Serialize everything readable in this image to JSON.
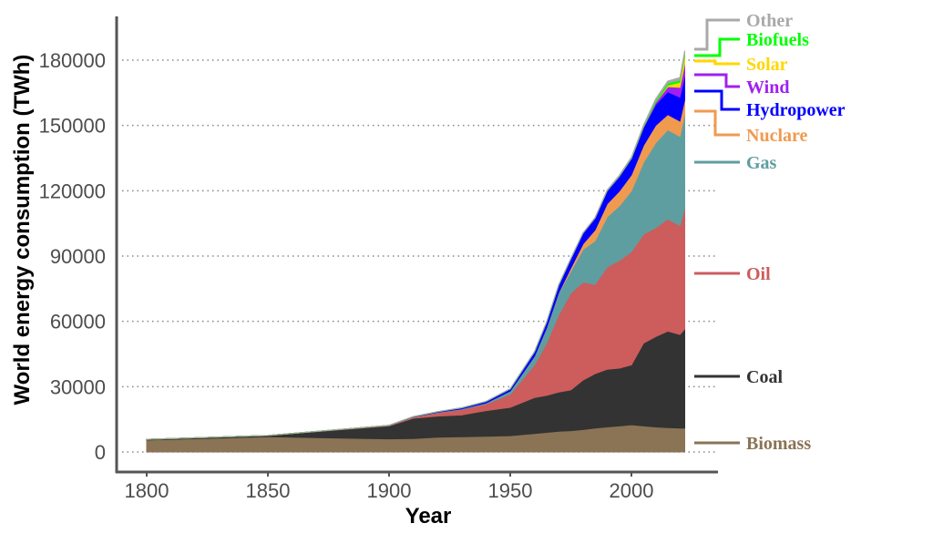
{
  "chart_data": {
    "type": "area",
    "stacked": true,
    "title": "",
    "xlabel": "Year",
    "ylabel": "World energy consumption (TWh)",
    "xlim": [
      1788,
      2035
    ],
    "ylim": [
      -9000,
      200000
    ],
    "xticks": [
      1800,
      1850,
      1900,
      1950,
      2000
    ],
    "yticks": [
      0,
      30000,
      60000,
      90000,
      120000,
      150000,
      180000
    ],
    "grid": "horizontal dotted",
    "legend": "direct labels at right",
    "x": [
      1800,
      1850,
      1900,
      1910,
      1920,
      1930,
      1940,
      1950,
      1960,
      1965,
      1970,
      1975,
      1980,
      1985,
      1990,
      1995,
      2000,
      2005,
      2010,
      2015,
      2020,
      2022
    ],
    "series": [
      {
        "name": "Biomass",
        "color": "#8B7355",
        "values": [
          5500,
          7000,
          6000,
          6200,
          6800,
          7000,
          7200,
          7500,
          8500,
          9000,
          9500,
          9800,
          10300,
          11000,
          11500,
          12000,
          12500,
          12000,
          11500,
          11200,
          11000,
          11000
        ]
      },
      {
        "name": "Coal",
        "color": "#333333",
        "values": [
          300,
          600,
          6000,
          9300,
          9700,
          10000,
          11800,
          13000,
          16500,
          17000,
          18000,
          18700,
          22700,
          25000,
          26500,
          26500,
          27500,
          38000,
          41500,
          44300,
          43000,
          45500
        ]
      },
      {
        "name": "Oil",
        "color": "#CD5C5C",
        "values": [
          0,
          0,
          200,
          500,
          1500,
          2500,
          3000,
          6000,
          15000,
          24000,
          35500,
          44500,
          45000,
          41000,
          47000,
          49500,
          52000,
          50000,
          50000,
          51500,
          50000,
          55500
        ]
      },
      {
        "name": "Gas",
        "color": "#5F9EA0",
        "values": [
          0,
          0,
          0,
          100,
          200,
          300,
          500,
          1500,
          4000,
          7000,
          10000,
          10000,
          15000,
          20000,
          23000,
          25000,
          28000,
          33000,
          39000,
          41000,
          41000,
          43000
        ]
      },
      {
        "name": "Nuclare",
        "color": "#F09A50",
        "values": [
          0,
          0,
          0,
          0,
          0,
          0,
          0,
          0,
          0,
          50,
          200,
          1500,
          2500,
          5000,
          6000,
          6800,
          7300,
          7800,
          8000,
          7000,
          7000,
          6800
        ]
      },
      {
        "name": "Hydropower",
        "color": "#0000FF",
        "values": [
          0,
          0,
          50,
          150,
          300,
          500,
          700,
          1000,
          2000,
          2600,
          3500,
          4300,
          5000,
          5500,
          6000,
          6800,
          7500,
          8200,
          9500,
          10500,
          11000,
          11000
        ]
      },
      {
        "name": "Wind",
        "color": "#A020F0",
        "values": [
          0,
          0,
          0,
          0,
          0,
          0,
          0,
          0,
          0,
          0,
          0,
          0,
          0,
          0,
          0,
          20,
          100,
          300,
          1000,
          2300,
          4500,
          5500
        ]
      },
      {
        "name": "Solar",
        "color": "#FFD700",
        "values": [
          0,
          0,
          0,
          0,
          0,
          0,
          0,
          0,
          0,
          0,
          0,
          0,
          0,
          0,
          0,
          0,
          5,
          10,
          100,
          700,
          2300,
          3500
        ]
      },
      {
        "name": "Biofuels",
        "color": "#00FF00",
        "values": [
          0,
          0,
          0,
          0,
          0,
          0,
          0,
          0,
          0,
          0,
          0,
          0,
          0,
          50,
          100,
          150,
          200,
          400,
          900,
          1000,
          1000,
          1200
        ]
      },
      {
        "name": "Other",
        "color": "#A9A9A9",
        "values": [
          0,
          0,
          0,
          0,
          0,
          0,
          0,
          0,
          0,
          0,
          0,
          50,
          100,
          200,
          300,
          350,
          400,
          500,
          700,
          900,
          1200,
          1400
        ]
      }
    ]
  }
}
